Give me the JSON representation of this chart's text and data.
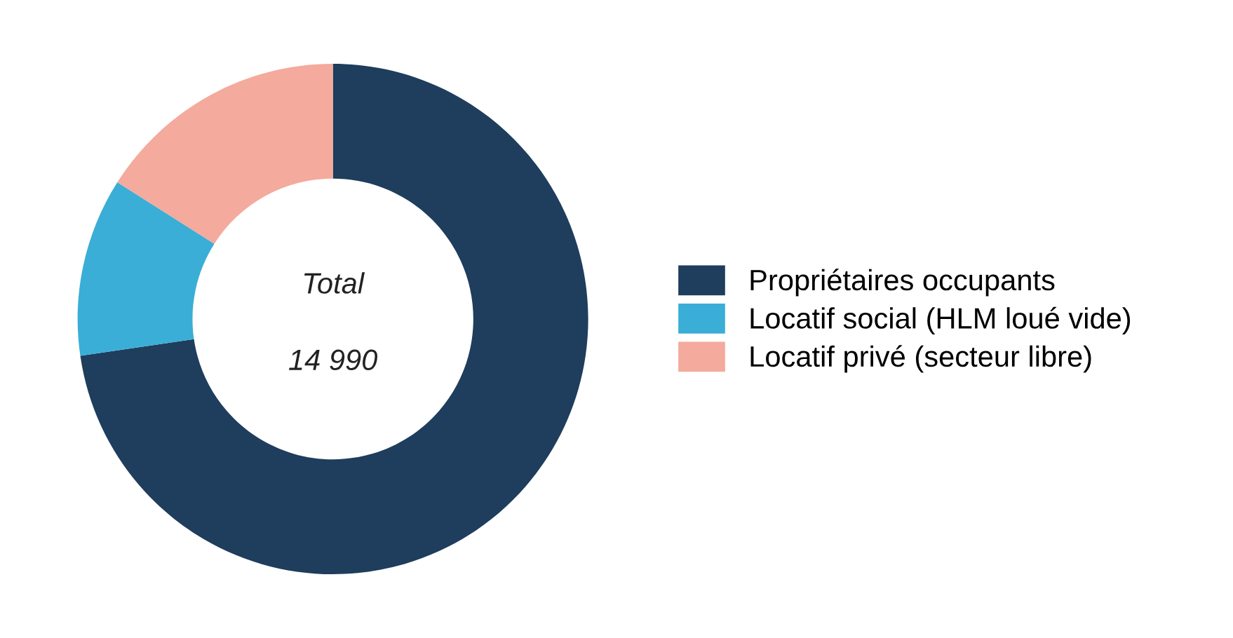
{
  "chart_data": {
    "type": "donut",
    "categories": [
      "Propriétaires occupants",
      "Locatif social (HLM loué vide)",
      "Locatif privé (secteur libre)"
    ],
    "values": [
      72.7,
      11.3,
      16.0
    ],
    "colors": [
      "#1f3d5c",
      "#3aaed6",
      "#f4aa9c"
    ],
    "annotations": [
      "Total",
      "14 990"
    ],
    "legend": "right"
  }
}
